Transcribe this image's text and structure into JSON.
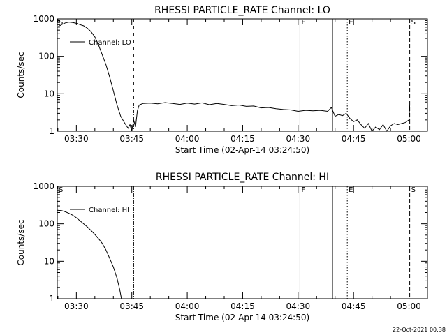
{
  "footer": "22-Oct-2021 00:38",
  "chart_data": [
    {
      "type": "line",
      "title": "RHESSI PARTICLE_RATE Channel: LO",
      "xlabel": "Start Time (02-Apr-14 03:24:50)",
      "ylabel": "Counts/sec",
      "x_ticks": [
        "03:30",
        "03:45",
        "04:00",
        "04:15",
        "04:30",
        "04:45",
        "05:00"
      ],
      "x_tick_minutes": [
        210,
        225,
        240,
        255,
        270,
        285,
        300
      ],
      "xlim_minutes": [
        204.83,
        305
      ],
      "ylim": [
        1,
        1000
      ],
      "y_scale": "log",
      "y_ticks": [
        "1",
        "10",
        "100",
        "1000"
      ],
      "legend": {
        "label": "Channel: LO",
        "position": "top-left"
      },
      "markers": [
        {
          "label": "S",
          "minute": 204.83,
          "style": "none"
        },
        {
          "label": "",
          "minute": 225.5,
          "style": "dashdot"
        },
        {
          "label": "F",
          "minute": 270.5,
          "style": "solid"
        },
        {
          "label": "",
          "minute": 279.3,
          "style": "solid"
        },
        {
          "label": "E",
          "minute": 283.3,
          "style": "dotted"
        },
        {
          "label": "S",
          "minute": 300.2,
          "style": "dashed"
        }
      ],
      "series": [
        {
          "name": "Channel: LO",
          "x": [
            204.83,
            206,
            207,
            208,
            209,
            210,
            211,
            212,
            213,
            214,
            215,
            216,
            217,
            218,
            219,
            220,
            221,
            222,
            223,
            224,
            224.5,
            225,
            225.5,
            226,
            226.5,
            227,
            228,
            230,
            232,
            234,
            236,
            238,
            240,
            242,
            244,
            246,
            248,
            250,
            252,
            254,
            256,
            258,
            260,
            262,
            264,
            266,
            268,
            270,
            272,
            274,
            276,
            278,
            279,
            280,
            281,
            282,
            283,
            284,
            285,
            286,
            287,
            288,
            289,
            290,
            291,
            292,
            293,
            294,
            295,
            296,
            297,
            298,
            299,
            300,
            300.2
          ],
          "y": [
            600,
            700,
            780,
            820,
            800,
            760,
            700,
            650,
            560,
            450,
            330,
            200,
            110,
            60,
            28,
            12,
            5,
            2.5,
            1.7,
            1.2,
            1.5,
            1.0,
            2.0,
            1.3,
            3.5,
            5.0,
            5.5,
            5.6,
            5.4,
            5.8,
            5.5,
            5.2,
            5.6,
            5.3,
            5.7,
            5.1,
            5.5,
            5.2,
            4.8,
            5.0,
            4.6,
            4.7,
            4.2,
            4.3,
            4.0,
            3.8,
            3.7,
            3.4,
            3.6,
            3.5,
            3.6,
            3.4,
            4.3,
            2.5,
            2.8,
            2.6,
            3.0,
            2.2,
            1.8,
            2.0,
            1.5,
            1.2,
            1.6,
            1.0,
            1.3,
            1.1,
            1.5,
            1.0,
            1.4,
            1.6,
            1.5,
            1.6,
            1.7,
            2.0,
            5.0
          ]
        }
      ]
    },
    {
      "type": "line",
      "title": "RHESSI PARTICLE_RATE Channel: HI",
      "xlabel": "Start Time (02-Apr-14 03:24:50)",
      "ylabel": "Counts/sec",
      "x_ticks": [
        "03:30",
        "03:45",
        "04:00",
        "04:15",
        "04:30",
        "04:45",
        "05:00"
      ],
      "x_tick_minutes": [
        210,
        225,
        240,
        255,
        270,
        285,
        300
      ],
      "xlim_minutes": [
        204.83,
        305
      ],
      "ylim": [
        1,
        1000
      ],
      "y_scale": "log",
      "y_ticks": [
        "1",
        "10",
        "100",
        "1000"
      ],
      "legend": {
        "label": "Channel: HI",
        "position": "top-left"
      },
      "markers": [
        {
          "label": "S",
          "minute": 204.83,
          "style": "none"
        },
        {
          "label": "",
          "minute": 225.5,
          "style": "dashdot"
        },
        {
          "label": "F",
          "minute": 270.5,
          "style": "solid"
        },
        {
          "label": "",
          "minute": 279.3,
          "style": "solid"
        },
        {
          "label": "E",
          "minute": 283.3,
          "style": "dotted"
        },
        {
          "label": "S",
          "minute": 300.2,
          "style": "dashed"
        }
      ],
      "series": [
        {
          "name": "Channel: HI",
          "x": [
            204.83,
            206,
            207,
            208,
            209,
            210,
            211,
            212,
            213,
            214,
            215,
            216,
            217,
            218,
            219,
            220,
            221,
            221.7,
            222.2
          ],
          "y": [
            230,
            225,
            210,
            190,
            170,
            145,
            120,
            100,
            82,
            66,
            52,
            40,
            30,
            20,
            12,
            7,
            3.5,
            1.8,
            1.0
          ]
        }
      ]
    }
  ]
}
